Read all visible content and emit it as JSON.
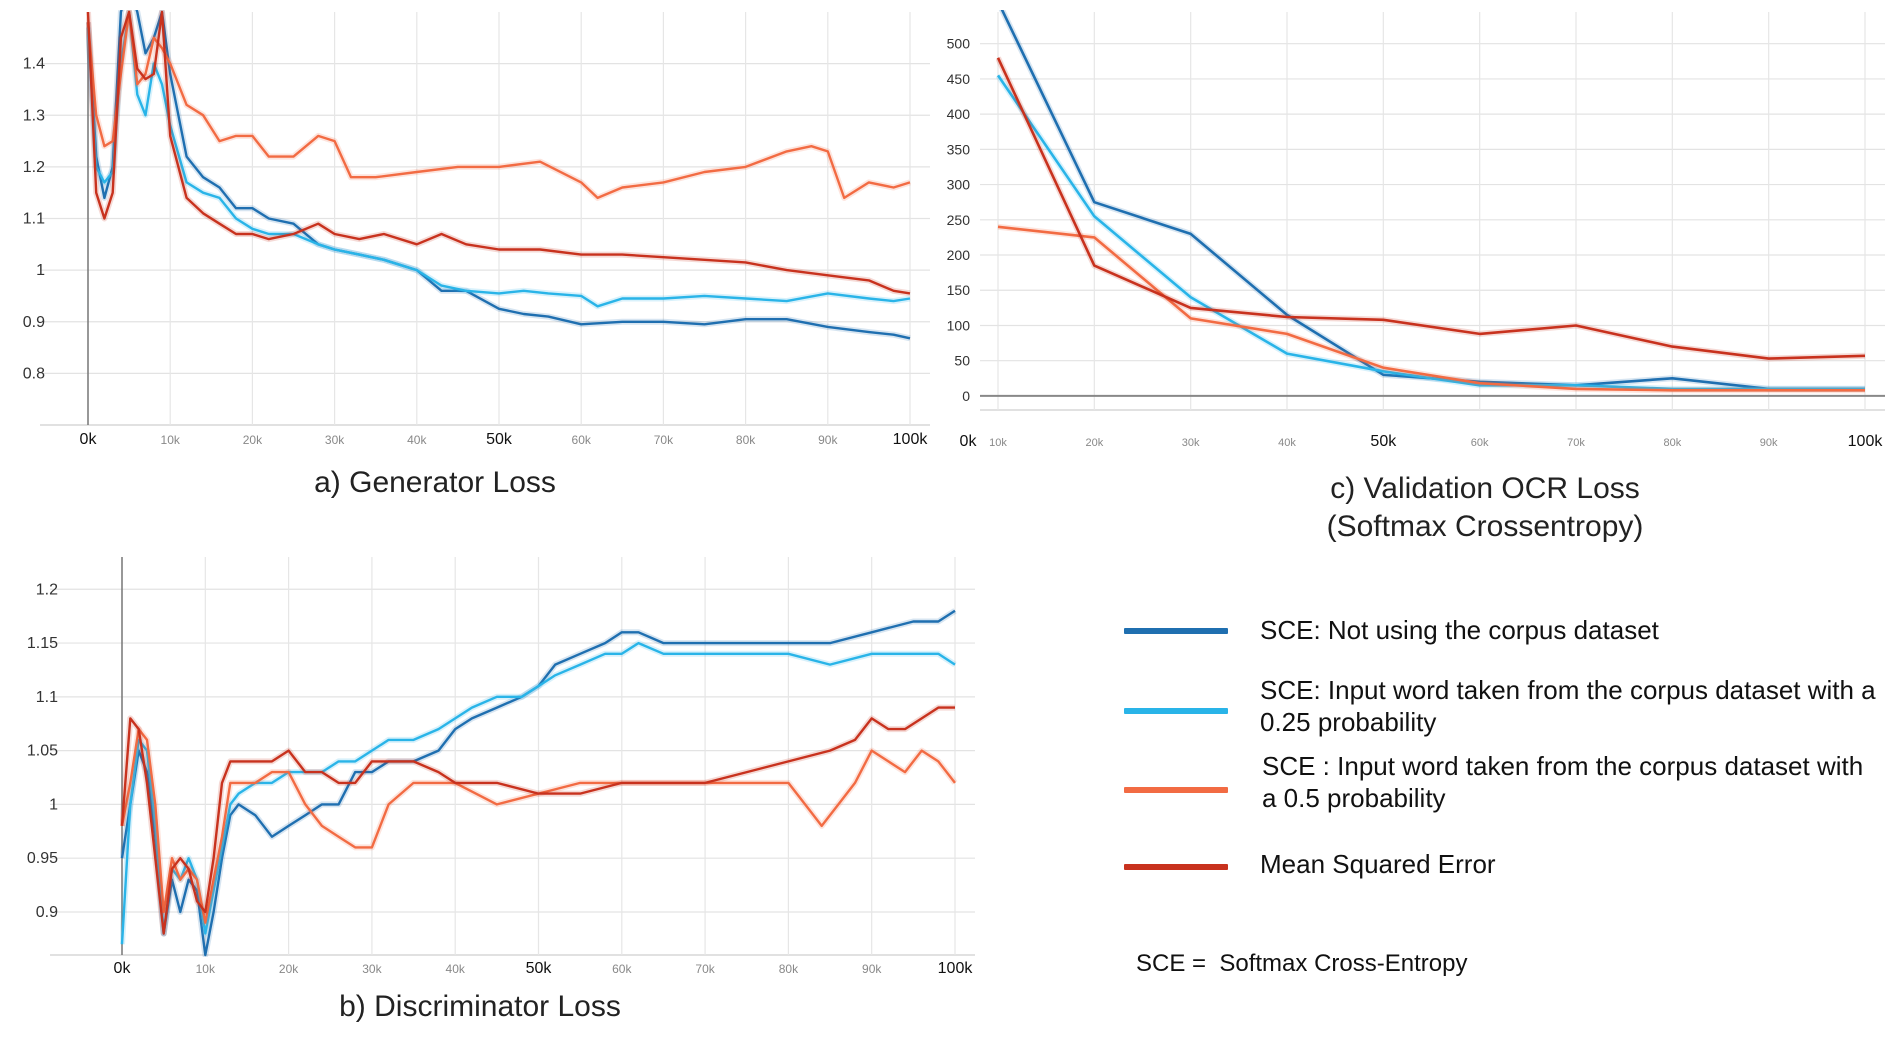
{
  "chart_data": [
    {
      "id": "generator",
      "type": "line",
      "title": "a) Generator Loss",
      "ylim": [
        0.7,
        1.5
      ],
      "xlim": [
        0,
        100
      ],
      "y_ticks": [
        "0.8",
        "0.9",
        "1",
        "1.1",
        "1.2",
        "1.3",
        "1.4"
      ],
      "y_tick_values": [
        0.8,
        0.9,
        1.0,
        1.1,
        1.2,
        1.3,
        1.4
      ],
      "x_ticks": [
        "0k",
        "10k",
        "20k",
        "30k",
        "40k",
        "50k",
        "60k",
        "70k",
        "80k",
        "90k",
        "100k"
      ],
      "x_tick_values": [
        0,
        10,
        20,
        30,
        40,
        50,
        60,
        70,
        80,
        90,
        100
      ],
      "x_tick_major": [
        true,
        false,
        false,
        false,
        false,
        true,
        false,
        false,
        false,
        false,
        true
      ],
      "grid": true,
      "series": [
        {
          "key": "sce_no_corpus",
          "color": "#1f6fb0",
          "x": [
            0,
            1,
            2,
            3,
            4,
            5,
            6,
            7,
            8,
            9,
            10,
            12,
            14,
            16,
            18,
            20,
            22,
            25,
            28,
            30,
            33,
            36,
            40,
            43,
            46,
            50,
            53,
            56,
            60,
            65,
            70,
            75,
            80,
            85,
            90,
            95,
            98,
            100
          ],
          "y": [
            1.48,
            1.22,
            1.14,
            1.2,
            1.5,
            1.55,
            1.5,
            1.42,
            1.45,
            1.5,
            1.38,
            1.22,
            1.18,
            1.16,
            1.12,
            1.12,
            1.1,
            1.09,
            1.05,
            1.04,
            1.03,
            1.02,
            1.0,
            0.96,
            0.96,
            0.925,
            0.915,
            0.91,
            0.895,
            0.9,
            0.9,
            0.895,
            0.905,
            0.905,
            0.89,
            0.88,
            0.875,
            0.868
          ]
        },
        {
          "key": "sce_corpus_025",
          "color": "#29b4e8",
          "x": [
            0,
            1,
            2,
            3,
            4,
            5,
            6,
            7,
            8,
            9,
            10,
            12,
            14,
            16,
            18,
            20,
            22,
            25,
            28,
            30,
            33,
            36,
            40,
            43,
            46,
            50,
            53,
            56,
            60,
            62,
            65,
            70,
            75,
            80,
            85,
            90,
            95,
            98,
            100
          ],
          "y": [
            1.47,
            1.2,
            1.17,
            1.19,
            1.4,
            1.5,
            1.34,
            1.3,
            1.4,
            1.36,
            1.28,
            1.17,
            1.15,
            1.14,
            1.1,
            1.08,
            1.07,
            1.07,
            1.05,
            1.04,
            1.03,
            1.02,
            1.0,
            0.97,
            0.96,
            0.955,
            0.96,
            0.955,
            0.95,
            0.93,
            0.945,
            0.945,
            0.95,
            0.945,
            0.94,
            0.955,
            0.945,
            0.94,
            0.945
          ]
        },
        {
          "key": "sce_corpus_05",
          "color": "#f26b43",
          "x": [
            0,
            1,
            2,
            3,
            4,
            5,
            6,
            7,
            8,
            9,
            10,
            12,
            14,
            16,
            18,
            20,
            22,
            25,
            28,
            30,
            32,
            35,
            40,
            45,
            50,
            55,
            60,
            62,
            65,
            70,
            75,
            80,
            85,
            88,
            90,
            92,
            95,
            98,
            100
          ],
          "y": [
            1.48,
            1.3,
            1.24,
            1.25,
            1.38,
            1.5,
            1.36,
            1.38,
            1.45,
            1.43,
            1.4,
            1.32,
            1.3,
            1.25,
            1.26,
            1.26,
            1.22,
            1.22,
            1.26,
            1.25,
            1.18,
            1.18,
            1.19,
            1.2,
            1.2,
            1.21,
            1.17,
            1.14,
            1.16,
            1.17,
            1.19,
            1.2,
            1.23,
            1.24,
            1.23,
            1.14,
            1.17,
            1.16,
            1.17
          ]
        },
        {
          "key": "mse",
          "color": "#c8321e",
          "x": [
            0,
            1,
            2,
            3,
            4,
            5,
            6,
            7,
            8,
            9,
            10,
            12,
            14,
            16,
            18,
            20,
            22,
            25,
            28,
            30,
            33,
            36,
            40,
            43,
            46,
            50,
            55,
            60,
            65,
            70,
            75,
            80,
            85,
            90,
            95,
            98,
            100
          ],
          "y": [
            1.5,
            1.15,
            1.1,
            1.15,
            1.45,
            1.5,
            1.39,
            1.37,
            1.38,
            1.5,
            1.26,
            1.14,
            1.11,
            1.09,
            1.07,
            1.07,
            1.06,
            1.07,
            1.09,
            1.07,
            1.06,
            1.07,
            1.05,
            1.07,
            1.05,
            1.04,
            1.04,
            1.03,
            1.03,
            1.025,
            1.02,
            1.015,
            1.0,
            0.99,
            0.98,
            0.96,
            0.955
          ]
        }
      ]
    },
    {
      "id": "discriminator",
      "type": "line",
      "title": "b) Discriminator Loss",
      "ylim": [
        0.86,
        1.23
      ],
      "xlim": [
        0,
        100
      ],
      "y_ticks": [
        "0.9",
        "0.95",
        "1",
        "1.05",
        "1.1",
        "1.15",
        "1.2"
      ],
      "y_tick_values": [
        0.9,
        0.95,
        1.0,
        1.05,
        1.1,
        1.15,
        1.2
      ],
      "x_ticks": [
        "0k",
        "10k",
        "20k",
        "30k",
        "40k",
        "50k",
        "60k",
        "70k",
        "80k",
        "90k",
        "100k"
      ],
      "x_tick_values": [
        0,
        10,
        20,
        30,
        40,
        50,
        60,
        70,
        80,
        90,
        100
      ],
      "x_tick_major": [
        true,
        false,
        false,
        false,
        false,
        true,
        false,
        false,
        false,
        false,
        true
      ],
      "grid": true,
      "series": [
        {
          "key": "sce_no_corpus",
          "color": "#1f6fb0",
          "x": [
            0,
            1,
            2,
            3,
            4,
            5,
            6,
            7,
            8,
            9,
            10,
            11,
            12,
            13,
            14,
            16,
            18,
            20,
            22,
            24,
            26,
            28,
            30,
            32,
            35,
            38,
            40,
            42,
            45,
            48,
            50,
            52,
            55,
            58,
            60,
            62,
            65,
            70,
            75,
            80,
            85,
            90,
            95,
            98,
            100
          ],
          "y": [
            0.95,
            1.0,
            1.05,
            1.03,
            0.97,
            0.88,
            0.93,
            0.9,
            0.93,
            0.92,
            0.86,
            0.9,
            0.95,
            0.99,
            1.0,
            0.99,
            0.97,
            0.98,
            0.99,
            1.0,
            1.0,
            1.03,
            1.03,
            1.04,
            1.04,
            1.05,
            1.07,
            1.08,
            1.09,
            1.1,
            1.11,
            1.13,
            1.14,
            1.15,
            1.16,
            1.16,
            1.15,
            1.15,
            1.15,
            1.15,
            1.15,
            1.16,
            1.17,
            1.17,
            1.18
          ]
        },
        {
          "key": "sce_corpus_025",
          "color": "#29b4e8",
          "x": [
            0,
            1,
            2,
            3,
            4,
            5,
            6,
            7,
            8,
            9,
            10,
            11,
            12,
            13,
            14,
            16,
            18,
            20,
            22,
            24,
            26,
            28,
            30,
            32,
            35,
            38,
            40,
            42,
            45,
            48,
            50,
            52,
            55,
            58,
            60,
            62,
            65,
            70,
            75,
            80,
            85,
            90,
            95,
            98,
            100
          ],
          "y": [
            0.87,
            1.0,
            1.06,
            1.05,
            0.98,
            0.88,
            0.94,
            0.93,
            0.95,
            0.93,
            0.88,
            0.92,
            0.96,
            1.0,
            1.01,
            1.02,
            1.02,
            1.03,
            1.03,
            1.03,
            1.04,
            1.04,
            1.05,
            1.06,
            1.06,
            1.07,
            1.08,
            1.09,
            1.1,
            1.1,
            1.11,
            1.12,
            1.13,
            1.14,
            1.14,
            1.15,
            1.14,
            1.14,
            1.14,
            1.14,
            1.13,
            1.14,
            1.14,
            1.14,
            1.13
          ]
        },
        {
          "key": "sce_corpus_05",
          "color": "#f26b43",
          "x": [
            0,
            1,
            2,
            3,
            4,
            5,
            6,
            7,
            8,
            9,
            10,
            11,
            12,
            13,
            14,
            16,
            18,
            20,
            22,
            24,
            26,
            28,
            30,
            32,
            35,
            40,
            45,
            50,
            55,
            60,
            65,
            70,
            75,
            80,
            82,
            84,
            86,
            88,
            90,
            92,
            94,
            96,
            98,
            100
          ],
          "y": [
            0.98,
            1.02,
            1.07,
            1.06,
            1.0,
            0.9,
            0.95,
            0.93,
            0.94,
            0.93,
            0.89,
            0.93,
            0.97,
            1.02,
            1.02,
            1.02,
            1.03,
            1.03,
            1.0,
            0.98,
            0.97,
            0.96,
            0.96,
            1.0,
            1.02,
            1.02,
            1.0,
            1.01,
            1.02,
            1.02,
            1.02,
            1.02,
            1.02,
            1.02,
            1.0,
            0.98,
            1.0,
            1.02,
            1.05,
            1.04,
            1.03,
            1.05,
            1.04,
            1.02
          ]
        },
        {
          "key": "mse",
          "color": "#c8321e",
          "x": [
            0,
            1,
            2,
            3,
            4,
            5,
            6,
            7,
            8,
            9,
            10,
            11,
            12,
            13,
            14,
            16,
            18,
            20,
            22,
            24,
            26,
            28,
            30,
            32,
            35,
            38,
            40,
            45,
            50,
            55,
            60,
            65,
            70,
            75,
            80,
            85,
            88,
            90,
            92,
            94,
            96,
            98,
            100
          ],
          "y": [
            0.98,
            1.08,
            1.07,
            1.02,
            0.95,
            0.88,
            0.94,
            0.95,
            0.94,
            0.91,
            0.9,
            0.95,
            1.02,
            1.04,
            1.04,
            1.04,
            1.04,
            1.05,
            1.03,
            1.03,
            1.02,
            1.02,
            1.04,
            1.04,
            1.04,
            1.03,
            1.02,
            1.02,
            1.01,
            1.01,
            1.02,
            1.02,
            1.02,
            1.03,
            1.04,
            1.05,
            1.06,
            1.08,
            1.07,
            1.07,
            1.08,
            1.09,
            1.09
          ]
        }
      ]
    },
    {
      "id": "validation",
      "type": "line",
      "title": "c) Validation OCR Loss",
      "subtitle": "(Softmax Crossentropy)",
      "ylim": [
        -20,
        545
      ],
      "xlim": [
        0,
        100
      ],
      "y_ticks": [
        "0",
        "50",
        "100",
        "150",
        "200",
        "250",
        "300",
        "350",
        "400",
        "450",
        "500"
      ],
      "y_tick_values": [
        0,
        50,
        100,
        150,
        200,
        250,
        300,
        350,
        400,
        450,
        500
      ],
      "x_ticks": [
        "0k",
        "10k",
        "20k",
        "30k",
        "40k",
        "50k",
        "60k",
        "70k",
        "80k",
        "90k",
        "100k"
      ],
      "x_tick_values": [
        0,
        10,
        20,
        30,
        40,
        50,
        60,
        70,
        80,
        90,
        100
      ],
      "x_tick_major": [
        true,
        false,
        false,
        false,
        false,
        true,
        false,
        false,
        false,
        false,
        true
      ],
      "grid": true,
      "series": [
        {
          "key": "sce_no_corpus",
          "color": "#1f6fb0",
          "x": [
            10,
            20,
            30,
            40,
            50,
            60,
            70,
            80,
            90,
            100
          ],
          "y": [
            560,
            275,
            230,
            115,
            30,
            20,
            15,
            25,
            10,
            10
          ]
        },
        {
          "key": "sce_corpus_025",
          "color": "#29b4e8",
          "x": [
            10,
            20,
            30,
            40,
            50,
            60,
            70,
            80,
            90,
            100
          ],
          "y": [
            455,
            255,
            140,
            60,
            35,
            15,
            15,
            10,
            10,
            10
          ]
        },
        {
          "key": "sce_corpus_05",
          "color": "#f26b43",
          "x": [
            10,
            20,
            30,
            40,
            50,
            60,
            70,
            80,
            90,
            100
          ],
          "y": [
            240,
            225,
            110,
            88,
            40,
            18,
            10,
            8,
            8,
            8
          ]
        },
        {
          "key": "mse",
          "color": "#c8321e",
          "x": [
            10,
            20,
            30,
            40,
            50,
            60,
            70,
            80,
            90,
            100
          ],
          "y": [
            480,
            185,
            125,
            112,
            108,
            88,
            100,
            70,
            53,
            57
          ]
        }
      ]
    }
  ],
  "legend": {
    "items": [
      {
        "key": "sce_no_corpus",
        "color": "#1f6fb0",
        "label": "SCE: Not using the corpus dataset"
      },
      {
        "key": "sce_corpus_025",
        "color": "#29b4e8",
        "label": "SCE: Input word taken from the corpus dataset with a 0.25 probability"
      },
      {
        "key": "sce_corpus_05",
        "color": "#f26b43",
        "label": "SCE : Input word taken from the corpus dataset with a 0.5 probability"
      },
      {
        "key": "mse",
        "color": "#c8321e",
        "label": "Mean Squared Error"
      }
    ],
    "footnote": "SCE =  Softmax Cross-Entropy"
  }
}
